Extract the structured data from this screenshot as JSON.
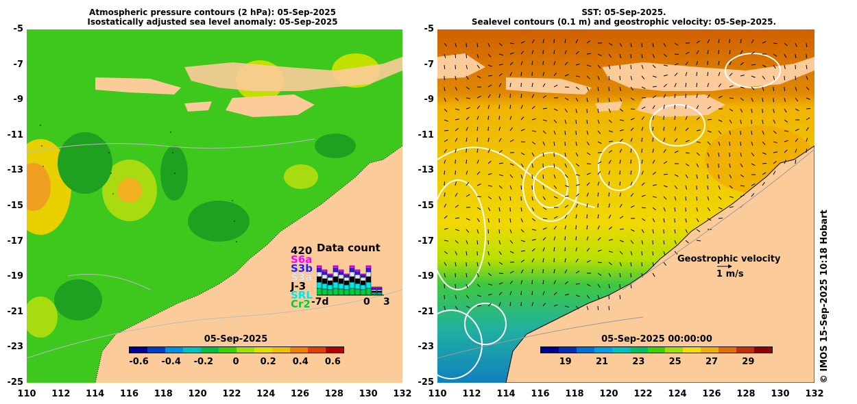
{
  "left_panel": {
    "title_line1": "Atmospheric pressure contours (2 hPa): 05-Sep-2025",
    "title_line2": "Isostatically adjusted sea level anomaly: 05-Sep-2025",
    "y_ticks": [
      "-5",
      "-7",
      "-9",
      "-11",
      "-13",
      "-15",
      "-17",
      "-19",
      "-21",
      "-23",
      "-25"
    ],
    "x_ticks": [
      "110",
      "112",
      "114",
      "116",
      "118",
      "120",
      "122",
      "124",
      "126",
      "128",
      "130",
      "132"
    ],
    "colorbar": {
      "title": "05-Sep-2025",
      "labels": [
        "-0.6",
        "-0.4",
        "-0.2",
        "0",
        "0.2",
        "0.4",
        "0.6"
      ],
      "colors": [
        "#00008b",
        "#0040c0",
        "#0090e0",
        "#00c0c0",
        "#00c040",
        "#40d000",
        "#a0e000",
        "#e0e000",
        "#f0c000",
        "#f08000",
        "#e04000",
        "#b00000"
      ]
    },
    "data_count": {
      "title": "Data count",
      "max_label": "420",
      "legend": [
        "S6a",
        "S3b",
        "S3a",
        "J-3",
        "SRL",
        "Cr2"
      ],
      "legend_colors": [
        "#ff00ff",
        "#2020ff",
        "#e8e8e8",
        "#000000",
        "#00e8e8",
        "#00d040"
      ],
      "x_labels": [
        "-7d",
        "0",
        "3"
      ]
    }
  },
  "right_panel": {
    "title_line1": "SST: 05-Sep-2025.",
    "title_line2": "Sealevel contours (0.1 m) and geostrophic velocity: 05-Sep-2025.",
    "y_ticks": [
      "-5",
      "-7",
      "-9",
      "-11",
      "-13",
      "-15",
      "-17",
      "-19",
      "-21",
      "-23",
      "-25"
    ],
    "x_ticks": [
      "110",
      "112",
      "114",
      "116",
      "118",
      "120",
      "122",
      "124",
      "126",
      "128",
      "130",
      "132"
    ],
    "colorbar": {
      "title": "05-Sep-2025 00:00:00",
      "labels": [
        "19",
        "21",
        "23",
        "25",
        "27",
        "29"
      ],
      "colors": [
        "#00008b",
        "#0030b0",
        "#0070d0",
        "#00a0e0",
        "#00c0c0",
        "#00c060",
        "#40d000",
        "#a0e000",
        "#f0e000",
        "#f0b000",
        "#e07000",
        "#c03000",
        "#900000"
      ]
    },
    "velocity_label": "Geostrophic velocity",
    "velocity_scale": "1 m/s"
  },
  "copyright": "© IMOS 15-Sep-2025 10:18 Hobart",
  "colors": {
    "land": "#fccb9a",
    "sea_green": "#40d020",
    "sst_yellow": "#f0c800"
  }
}
